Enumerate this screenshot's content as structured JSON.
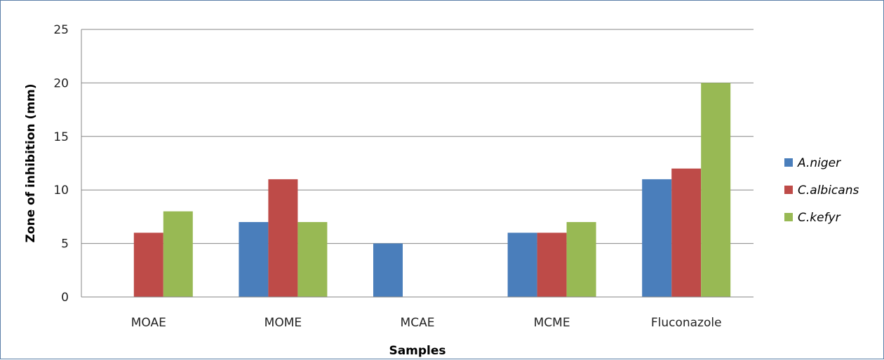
{
  "chart_data": {
    "type": "bar",
    "categories": [
      "MOAE",
      "MOME",
      "MCAE",
      "MCME",
      "Fluconazole"
    ],
    "series": [
      {
        "name": "A.niger",
        "values": [
          0,
          7,
          5,
          6,
          11
        ],
        "color": "#4a7ebb"
      },
      {
        "name": "C.albicans",
        "values": [
          6,
          11,
          0,
          6,
          12
        ],
        "color": "#be4b48"
      },
      {
        "name": "C.kefyr",
        "values": [
          8,
          7,
          0,
          7,
          20
        ],
        "color": "#98b954"
      }
    ],
    "title": "",
    "xlabel": "Samples",
    "ylabel": "Zone of inhibition  (mm)",
    "ylim": [
      0,
      25
    ],
    "yticks": [
      "0",
      "5",
      "10",
      "15",
      "20",
      "25"
    ],
    "grid": true,
    "legend_position": "right"
  }
}
